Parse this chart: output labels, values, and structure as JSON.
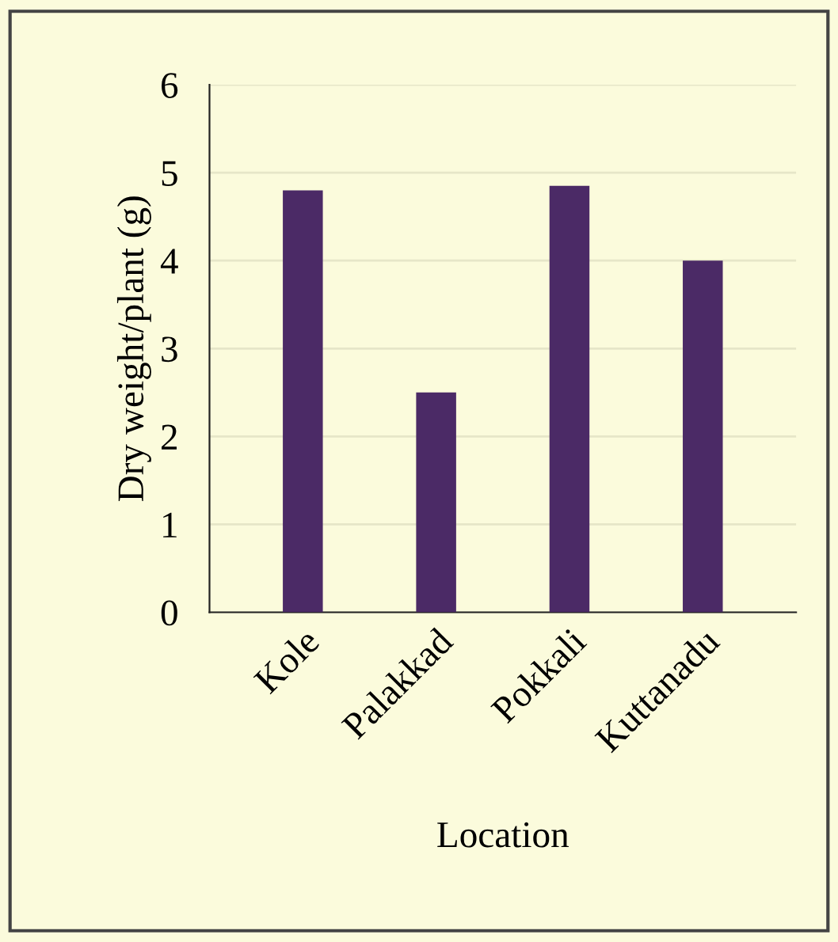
{
  "chart_data": {
    "type": "bar",
    "xlabel": "Location",
    "ylabel": "Dry weight/plant (g)",
    "categories": [
      "Kole",
      "Palakkad",
      "Pokkali",
      "Kuttanadu"
    ],
    "values": [
      4.8,
      2.5,
      4.85,
      4.0
    ],
    "color": "#4b2a66",
    "ylim": [
      0,
      6
    ],
    "yticks": [
      0,
      1,
      2,
      3,
      4,
      5,
      6
    ],
    "grid": "y"
  }
}
